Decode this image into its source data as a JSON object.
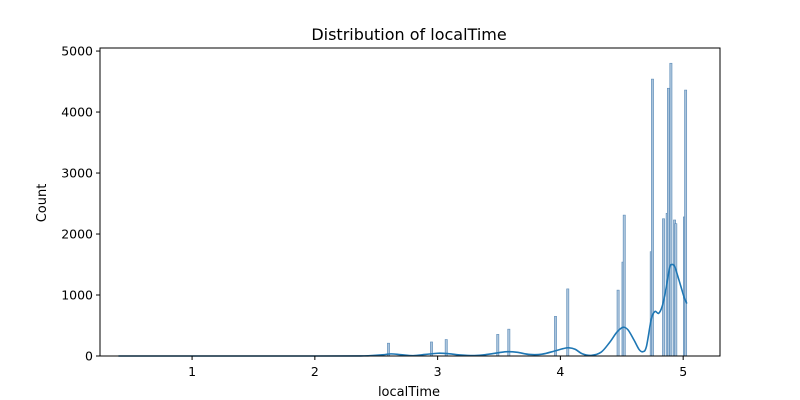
{
  "chart_data": {
    "type": "bar",
    "title": "Distribution of localTime",
    "xlabel": "localTime",
    "ylabel": "Count",
    "xlim": [
      0.25,
      5.3
    ],
    "ylim": [
      0,
      5050
    ],
    "xticks": [
      1,
      2,
      3,
      4,
      5
    ],
    "yticks": [
      0,
      1000,
      2000,
      3000,
      4000,
      5000
    ],
    "grid": false,
    "legend": "none",
    "colors": {
      "bar_fill": "#aac4dc",
      "bar_edge": "#5a8ab7",
      "kde": "#1f77b4"
    },
    "histogram": [
      {
        "x": 2.6,
        "count": 210
      },
      {
        "x": 2.95,
        "count": 230
      },
      {
        "x": 3.07,
        "count": 270
      },
      {
        "x": 3.49,
        "count": 355
      },
      {
        "x": 3.58,
        "count": 440
      },
      {
        "x": 3.96,
        "count": 650
      },
      {
        "x": 4.06,
        "count": 1100
      },
      {
        "x": 4.47,
        "count": 1080
      },
      {
        "x": 4.51,
        "count": 1540
      },
      {
        "x": 4.52,
        "count": 2310
      },
      {
        "x": 4.74,
        "count": 1710
      },
      {
        "x": 4.75,
        "count": 4540
      },
      {
        "x": 4.84,
        "count": 2250
      },
      {
        "x": 4.87,
        "count": 2340
      },
      {
        "x": 4.88,
        "count": 4390
      },
      {
        "x": 4.9,
        "count": 4800
      },
      {
        "x": 4.93,
        "count": 2230
      },
      {
        "x": 4.94,
        "count": 2170
      },
      {
        "x": 5.01,
        "count": 2280
      },
      {
        "x": 5.02,
        "count": 4360
      }
    ],
    "kde": {
      "x": [
        0.4,
        1.0,
        2.0,
        2.4,
        2.55,
        2.62,
        2.7,
        2.8,
        2.9,
        3.0,
        3.08,
        3.18,
        3.3,
        3.4,
        3.5,
        3.57,
        3.65,
        3.75,
        3.85,
        3.95,
        4.02,
        4.07,
        4.12,
        4.18,
        4.25,
        4.33,
        4.4,
        4.46,
        4.51,
        4.55,
        4.6,
        4.64,
        4.67,
        4.7,
        4.74,
        4.77,
        4.8,
        4.83,
        4.86,
        4.89,
        4.91,
        4.93,
        4.95,
        4.98,
        5.01,
        5.03
      ],
      "y": [
        0,
        0,
        0,
        2,
        20,
        35,
        22,
        6,
        25,
        45,
        40,
        18,
        8,
        25,
        55,
        70,
        60,
        25,
        30,
        80,
        120,
        135,
        110,
        35,
        10,
        60,
        220,
        390,
        470,
        430,
        260,
        110,
        70,
        150,
        600,
        730,
        700,
        820,
        1100,
        1450,
        1500,
        1470,
        1350,
        1150,
        950,
        860
      ]
    }
  }
}
